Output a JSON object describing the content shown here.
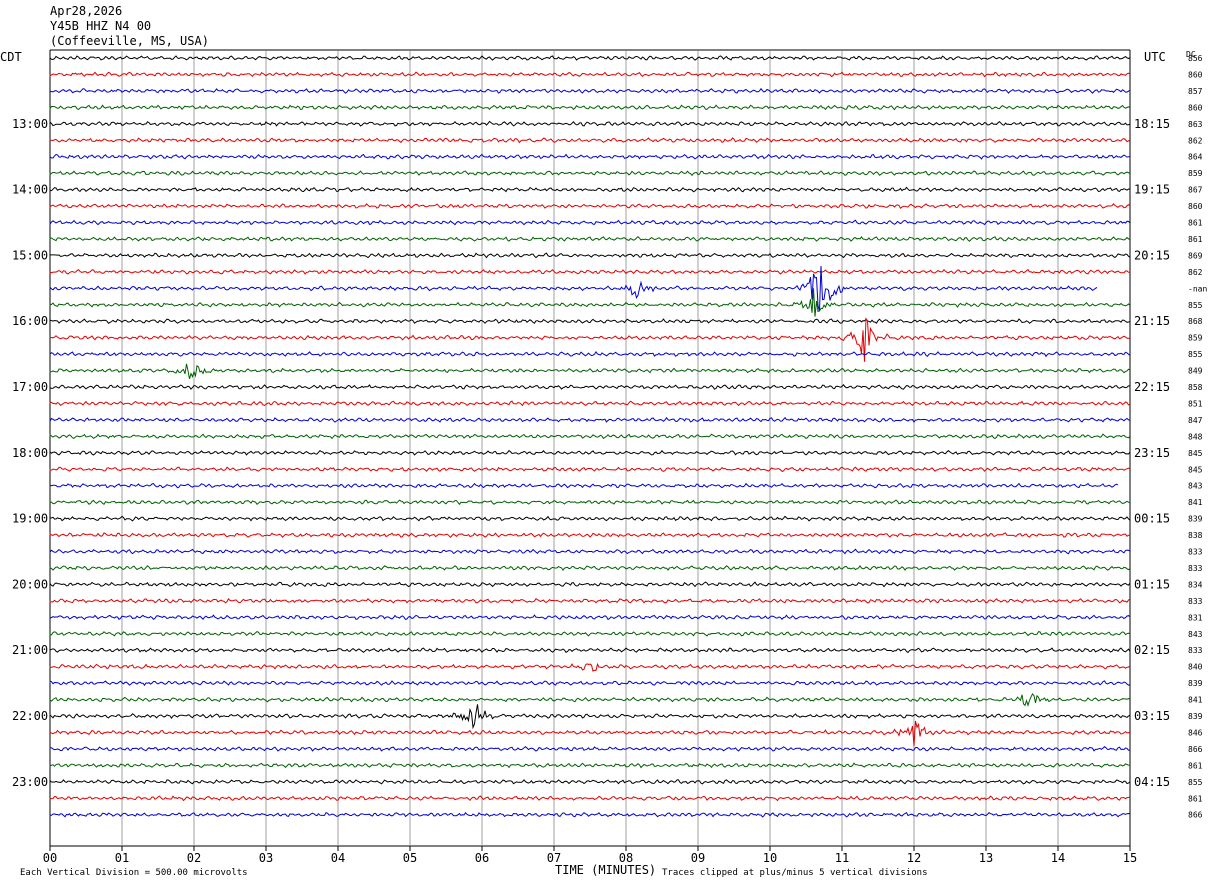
{
  "header": {
    "date": "Apr28,2026",
    "station": "Y45B HHZ N4 00",
    "location": "(Coffeeville, MS, USA)"
  },
  "labels": {
    "left_tz": "CDT",
    "right_tz": "UTC",
    "dc": "DC",
    "xlabel": "TIME (MINUTES)",
    "scale_note": "Each Vertical Division =  500.00 microvolts",
    "clip_note": "Traces clipped at plus/minus 5 vertical divisions"
  },
  "chart_data": {
    "type": "line",
    "title": "Y45B HHZ N4 00 (Coffeeville, MS, USA) Apr28,2026",
    "xlabel": "TIME (MINUTES)",
    "xlim": [
      0,
      15
    ],
    "x_ticks": [
      "00",
      "01",
      "02",
      "03",
      "04",
      "05",
      "06",
      "07",
      "08",
      "09",
      "10",
      "11",
      "12",
      "13",
      "14",
      "15"
    ],
    "left_time_labels": [
      "13:00",
      "14:00",
      "15:00",
      "16:00",
      "17:00",
      "18:00",
      "19:00",
      "20:00",
      "21:00",
      "22:00",
      "23:00"
    ],
    "right_time_labels": [
      "18:15",
      "19:15",
      "20:15",
      "21:15",
      "22:15",
      "23:15",
      "00:15",
      "01:15",
      "02:15",
      "03:15",
      "04:15"
    ],
    "trace_colors": [
      "#000000",
      "#e00000",
      "#0000d0",
      "#006000"
    ],
    "dc_offsets": [
      "856",
      "860",
      "857",
      "860",
      "863",
      "862",
      "864",
      "859",
      "867",
      "860",
      "861",
      "861",
      "869",
      "862",
      "-nan",
      "855",
      "868",
      "859",
      "855",
      "849",
      "858",
      "851",
      "847",
      "848",
      "845",
      "845",
      "843",
      "841",
      "839",
      "838",
      "833",
      "833",
      "834",
      "833",
      "831",
      "843",
      "833",
      "840",
      "839",
      "841",
      "839",
      "846",
      "866",
      "861",
      "855",
      "861",
      "866"
    ],
    "trace_end_minutes": [
      15,
      15,
      15,
      15,
      15,
      15,
      15,
      15,
      15,
      15,
      15,
      15,
      15,
      15,
      14.55,
      15,
      15,
      15,
      15,
      15,
      15,
      15,
      15,
      15,
      15,
      15,
      14.85,
      15,
      15,
      15,
      15,
      15,
      15,
      15,
      15,
      15,
      15,
      15,
      15,
      15,
      15,
      15,
      15,
      15,
      15,
      15,
      15
    ],
    "events": [
      {
        "trace": 14,
        "minute": 10.72,
        "amplitude": 3.0
      },
      {
        "trace": 15,
        "minute": 10.62,
        "amplitude": 1.2
      },
      {
        "trace": 17,
        "minute": 11.28,
        "amplitude": 2.2
      },
      {
        "trace": 14,
        "minute": 8.15,
        "amplitude": 0.8
      },
      {
        "trace": 19,
        "minute": 1.95,
        "amplitude": 0.7
      },
      {
        "trace": 39,
        "minute": 13.6,
        "amplitude": 0.8
      },
      {
        "trace": 40,
        "minute": 5.9,
        "amplitude": 1.3
      },
      {
        "trace": 41,
        "minute": 12.0,
        "amplitude": 1.2
      },
      {
        "trace": 37,
        "minute": 7.5,
        "amplitude": 0.5
      }
    ],
    "vertical_scale_microvolts": 500,
    "clip_divisions": 5
  }
}
